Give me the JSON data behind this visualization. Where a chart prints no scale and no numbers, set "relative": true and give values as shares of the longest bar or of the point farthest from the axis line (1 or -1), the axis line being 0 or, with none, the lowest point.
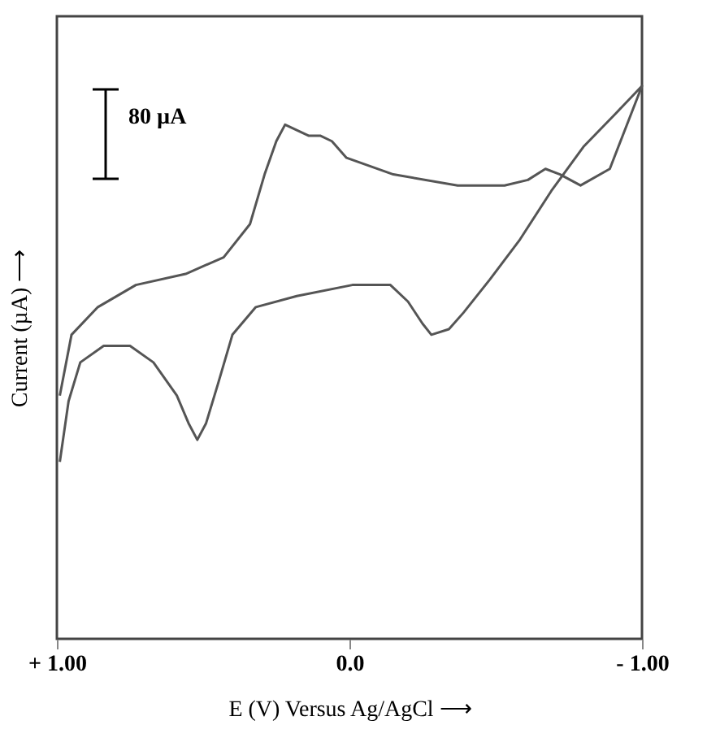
{
  "chart_data": {
    "type": "line",
    "xlabel": "E (V) Versus Ag/AgCl ⟶",
    "ylabel": "Current (µA) ⟶",
    "xlim": [
      1.0,
      -1.0
    ],
    "xticks": [
      {
        "value": 1.0,
        "label": "+ 1.00"
      },
      {
        "value": 0,
        "label": "0.0"
      },
      {
        "value": -1.0,
        "label": "- 1.00"
      }
    ],
    "relative": true,
    "grid": false,
    "marker": "none",
    "line_style": "solid",
    "annotations": [
      "80 µA"
    ],
    "series": [
      {
        "color": "#555555",
        "x": [
          0.99,
          0.95,
          0.86,
          0.73,
          0.56,
          0.43,
          0.34,
          0.29,
          0.25,
          0.22,
          0.18,
          0.14,
          0.1,
          0.06,
          0.01,
          -0.15,
          -0.37,
          -0.53,
          -0.61,
          -0.67,
          -0.72,
          -0.79,
          -0.89,
          -1.0,
          -0.91,
          -0.8,
          -0.69,
          -0.58,
          -0.48,
          -0.39,
          -0.34,
          -0.28,
          -0.25,
          -0.2,
          -0.14,
          -0.01,
          0.18,
          0.32,
          0.4,
          0.45,
          0.49,
          0.52,
          0.55,
          0.59,
          0.67,
          0.75,
          0.84,
          0.92,
          0.96,
          0.99
        ],
        "values": [
          0.44,
          0.55,
          0.6,
          0.64,
          0.66,
          0.69,
          0.75,
          0.84,
          0.9,
          0.93,
          0.92,
          0.91,
          0.91,
          0.9,
          0.87,
          0.84,
          0.82,
          0.82,
          0.83,
          0.85,
          0.84,
          0.82,
          0.85,
          1.0,
          0.95,
          0.89,
          0.81,
          0.72,
          0.65,
          0.59,
          0.56,
          0.55,
          0.57,
          0.61,
          0.64,
          0.64,
          0.62,
          0.6,
          0.55,
          0.46,
          0.39,
          0.36,
          0.39,
          0.44,
          0.5,
          0.53,
          0.53,
          0.5,
          0.43,
          0.32
        ]
      }
    ]
  }
}
